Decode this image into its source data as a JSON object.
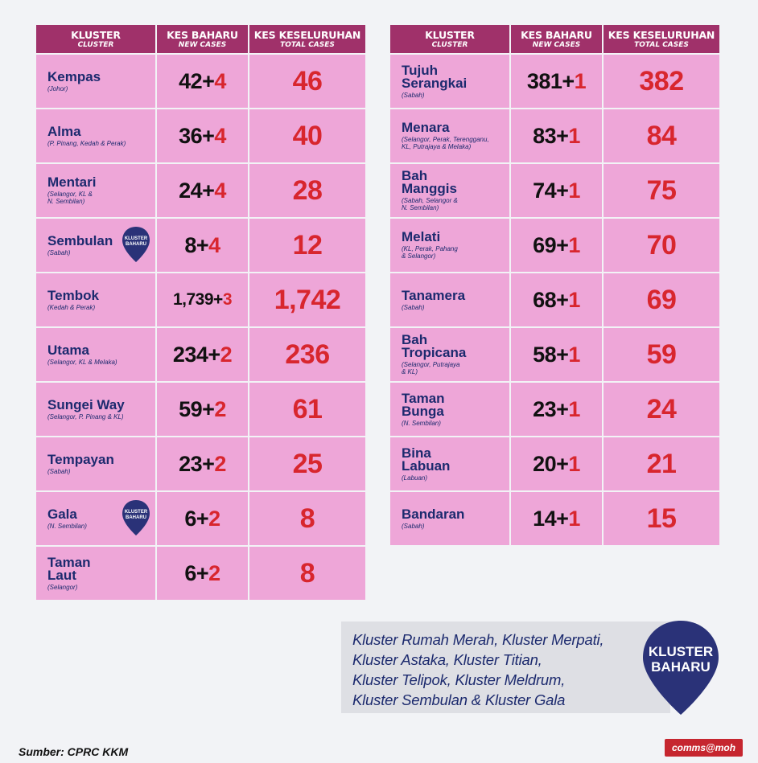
{
  "headers": {
    "cluster": "KLUSTER",
    "cluster_en": "CLUSTER",
    "new": "KES BAHARU",
    "new_en": "NEW CASES",
    "total": "KES KESELURUHAN",
    "total_en": "TOTAL CASES"
  },
  "left": [
    {
      "name": "Kempas",
      "region": "(Johor)",
      "base": "42+",
      "inc": "4",
      "total": "46",
      "new_badge": false
    },
    {
      "name": "Alma",
      "region": "(P. Pinang, Kedah & Perak)",
      "base": "36+",
      "inc": "4",
      "total": "40",
      "new_badge": false
    },
    {
      "name": "Mentari",
      "region": "(Selangor, KL &\nN. Sembilan)",
      "base": "24+",
      "inc": "4",
      "total": "28",
      "new_badge": false
    },
    {
      "name": "Sembulan",
      "region": "(Sabah)",
      "base": "8+",
      "inc": "4",
      "total": "12",
      "new_badge": true
    },
    {
      "name": "Tembok",
      "region": "(Kedah & Perak)",
      "base": "1,739+",
      "inc": "3",
      "total": "1,742",
      "new_badge": false
    },
    {
      "name": "Utama",
      "region": "(Selangor, KL & Melaka)",
      "base": "234+",
      "inc": "2",
      "total": "236",
      "new_badge": false
    },
    {
      "name": "Sungei Way",
      "region": "(Selangor, P. Pinang & KL)",
      "base": "59+",
      "inc": "2",
      "total": "61",
      "new_badge": false
    },
    {
      "name": "Tempayan",
      "region": "(Sabah)",
      "base": "23+",
      "inc": "2",
      "total": "25",
      "new_badge": false
    },
    {
      "name": "Gala",
      "region": "(N. Sembilan)",
      "base": "6+",
      "inc": "2",
      "total": "8",
      "new_badge": true
    },
    {
      "name": "Taman\nLaut",
      "region": "(Selangor)",
      "base": "6+",
      "inc": "2",
      "total": "8",
      "new_badge": false
    }
  ],
  "right": [
    {
      "name": "Tujuh\nSerangkai",
      "region": "(Sabah)",
      "base": "381+",
      "inc": "1",
      "total": "382"
    },
    {
      "name": "Menara",
      "region": "(Selangor, Perak, Terengganu,\nKL, Putrajaya & Melaka)",
      "base": "83+",
      "inc": "1",
      "total": "84"
    },
    {
      "name": "Bah\nManggis",
      "region": "(Sabah, Selangor &\nN. Sembilan)",
      "base": "74+",
      "inc": "1",
      "total": "75"
    },
    {
      "name": "Melati",
      "region": "(KL, Perak, Pahang\n& Selangor)",
      "base": "69+",
      "inc": "1",
      "total": "70"
    },
    {
      "name": "Tanamera",
      "region": "(Sabah)",
      "base": "68+",
      "inc": "1",
      "total": "69"
    },
    {
      "name": "Bah\nTropicana",
      "region": "(Selangor, Putrajaya\n& KL)",
      "base": "58+",
      "inc": "1",
      "total": "59"
    },
    {
      "name": "Taman\nBunga",
      "region": "(N. Sembilan)",
      "base": "23+",
      "inc": "1",
      "total": "24"
    },
    {
      "name": "Bina\nLabuan",
      "region": "(Labuan)",
      "base": "20+",
      "inc": "1",
      "total": "21"
    },
    {
      "name": "Bandaran",
      "region": "(Sabah)",
      "base": "14+",
      "inc": "1",
      "total": "15"
    }
  ],
  "badge_small_lines": [
    "KLUSTER",
    "BAHARU"
  ],
  "badge_big_lines": [
    "KLUSTER",
    "BAHARU"
  ],
  "note_lines": [
    "Kluster Rumah Merah, Kluster Merpati,",
    "Kluster Astaka, Kluster Titian,",
    "Kluster Telipok, Kluster Meldrum,",
    "Kluster Sembulan & Kluster Gala"
  ],
  "source": "Sumber: CPRC KKM",
  "brand": "comms@moh",
  "colors": {
    "header": "#a0316a",
    "cell": "#eea6d8",
    "navy": "#1c2a6e",
    "red": "#d8262e",
    "pin": "#2a3278"
  }
}
